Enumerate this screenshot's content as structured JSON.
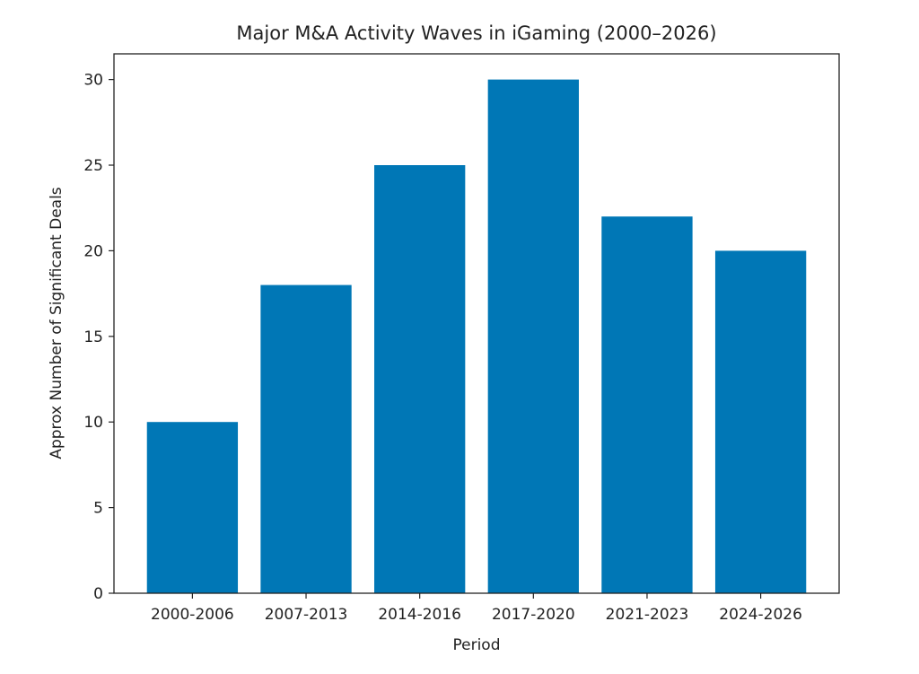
{
  "chart_data": {
    "type": "bar",
    "title": "Major M&A Activity Waves in iGaming (2000–2026)",
    "xlabel": "Period",
    "ylabel": "Approx Number of Significant Deals",
    "categories": [
      "2000-2006",
      "2007-2013",
      "2014-2016",
      "2017-2020",
      "2021-2023",
      "2024-2026"
    ],
    "values": [
      10,
      18,
      25,
      30,
      22,
      20
    ],
    "ylim": [
      0,
      31.5
    ],
    "yticks": [
      0,
      5,
      10,
      15,
      20,
      25,
      30
    ],
    "grid": false,
    "bar_color": "#0077b6"
  }
}
